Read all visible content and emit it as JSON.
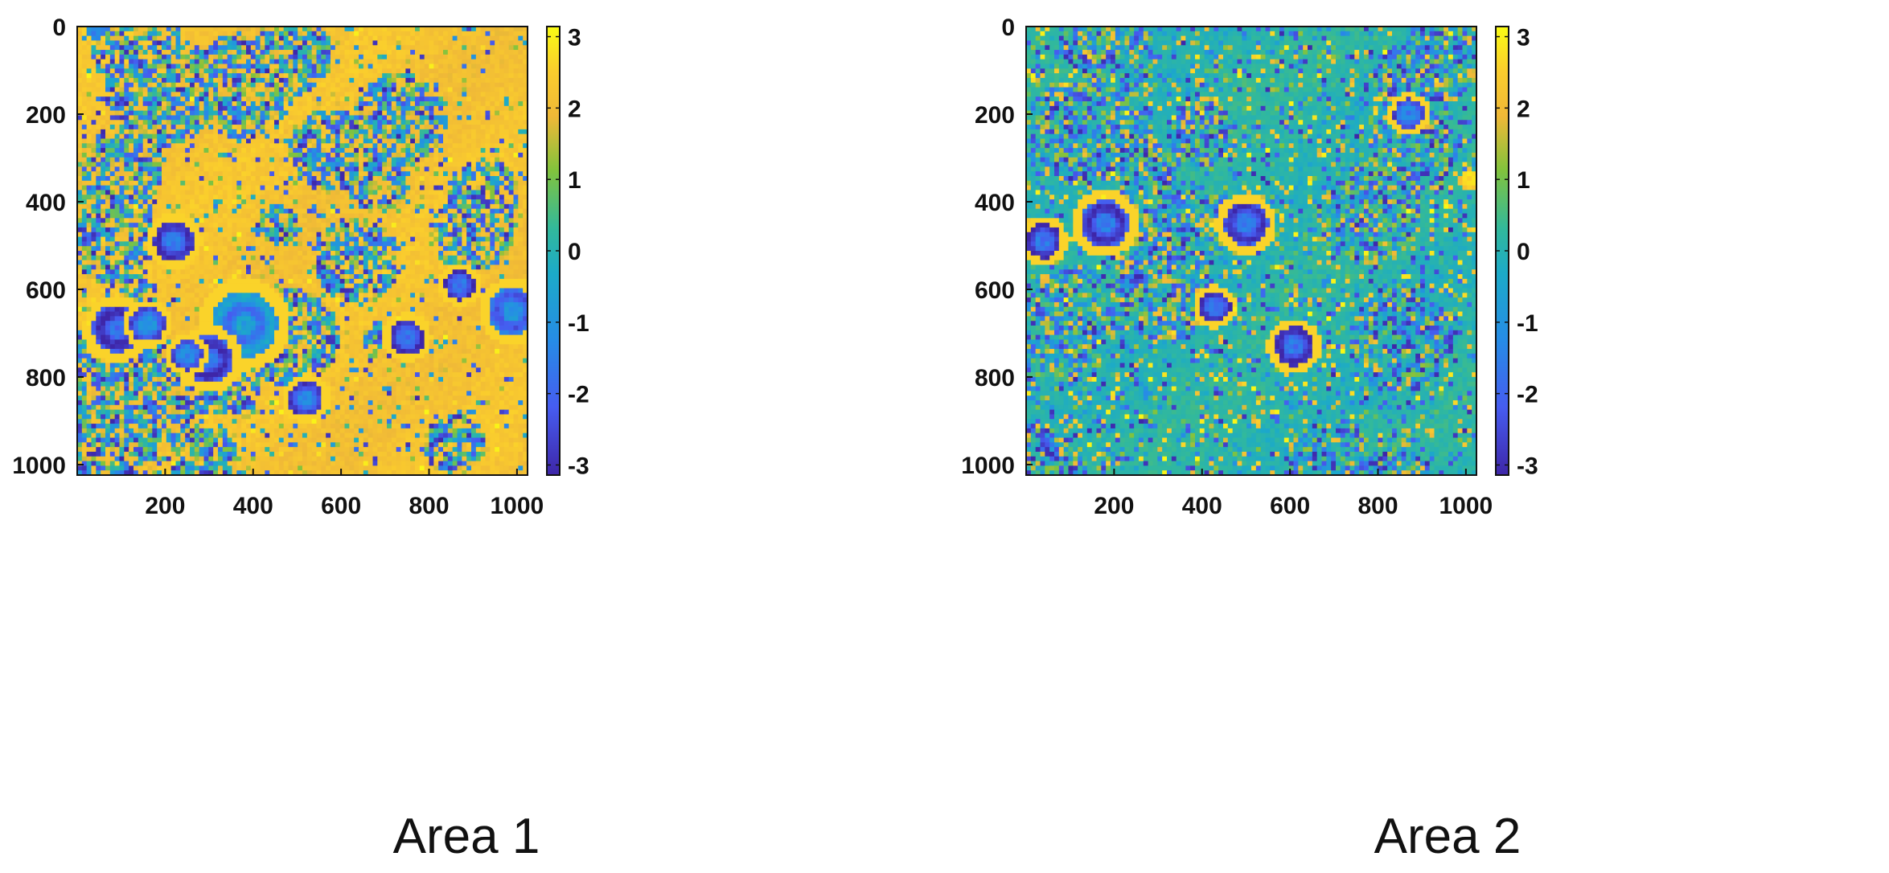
{
  "chart_data": [
    {
      "type": "heatmap",
      "caption": "Area 1",
      "xlim": [
        1,
        1024
      ],
      "ylim": [
        1024,
        0
      ],
      "x_ticks": [
        200,
        400,
        600,
        800,
        1000
      ],
      "y_ticks": [
        0,
        200,
        400,
        600,
        800,
        1000
      ],
      "colorbar": {
        "range": [
          -3.1416,
          3.1416
        ],
        "ticks": [
          3,
          2,
          1,
          0,
          -1,
          -2,
          -3
        ]
      },
      "background_value": 2.2,
      "noise_level": 0.45,
      "patch_fraction": 0.22,
      "features": [
        {
          "x": 220,
          "y": 490,
          "r": 45,
          "v": -2.2
        },
        {
          "x": 90,
          "y": 690,
          "r": 55,
          "v": -2.4
        },
        {
          "x": 160,
          "y": 680,
          "r": 40,
          "v": -1.8
        },
        {
          "x": 380,
          "y": 680,
          "r": 75,
          "v": -1.2
        },
        {
          "x": 300,
          "y": 760,
          "r": 55,
          "v": -2.3
        },
        {
          "x": 250,
          "y": 750,
          "r": 35,
          "v": -2.0
        },
        {
          "x": 520,
          "y": 850,
          "r": 40,
          "v": -2.1
        },
        {
          "x": 750,
          "y": 710,
          "r": 40,
          "v": -2.3
        },
        {
          "x": 870,
          "y": 590,
          "r": 35,
          "v": -2.5
        },
        {
          "x": 990,
          "y": 650,
          "r": 55,
          "v": -1.6
        },
        {
          "x": 40,
          "y": 10,
          "r": 20,
          "v": -2.0
        }
      ]
    },
    {
      "type": "heatmap",
      "caption": "Area 2",
      "xlim": [
        1,
        1024
      ],
      "ylim": [
        1024,
        0
      ],
      "x_ticks": [
        200,
        400,
        600,
        800,
        1000
      ],
      "y_ticks": [
        0,
        200,
        400,
        600,
        800,
        1000
      ],
      "colorbar": {
        "range": [
          -3.1416,
          3.1416
        ],
        "ticks": [
          3,
          2,
          1,
          0,
          -1,
          -2,
          -3
        ]
      },
      "background_value": 0.1,
      "noise_level": 1.1,
      "patch_fraction": 0.3,
      "features": [
        {
          "x": 40,
          "y": 490,
          "r": 40,
          "v": -2.4
        },
        {
          "x": 180,
          "y": 450,
          "r": 55,
          "v": -2.2
        },
        {
          "x": 500,
          "y": 450,
          "r": 50,
          "v": -2.1
        },
        {
          "x": 870,
          "y": 200,
          "r": 35,
          "v": -2.0
        },
        {
          "x": 430,
          "y": 640,
          "r": 35,
          "v": -2.5
        },
        {
          "x": 610,
          "y": 730,
          "r": 45,
          "v": -2.3
        },
        {
          "x": 1010,
          "y": 350,
          "r": 25,
          "v": 2.0
        }
      ]
    }
  ]
}
